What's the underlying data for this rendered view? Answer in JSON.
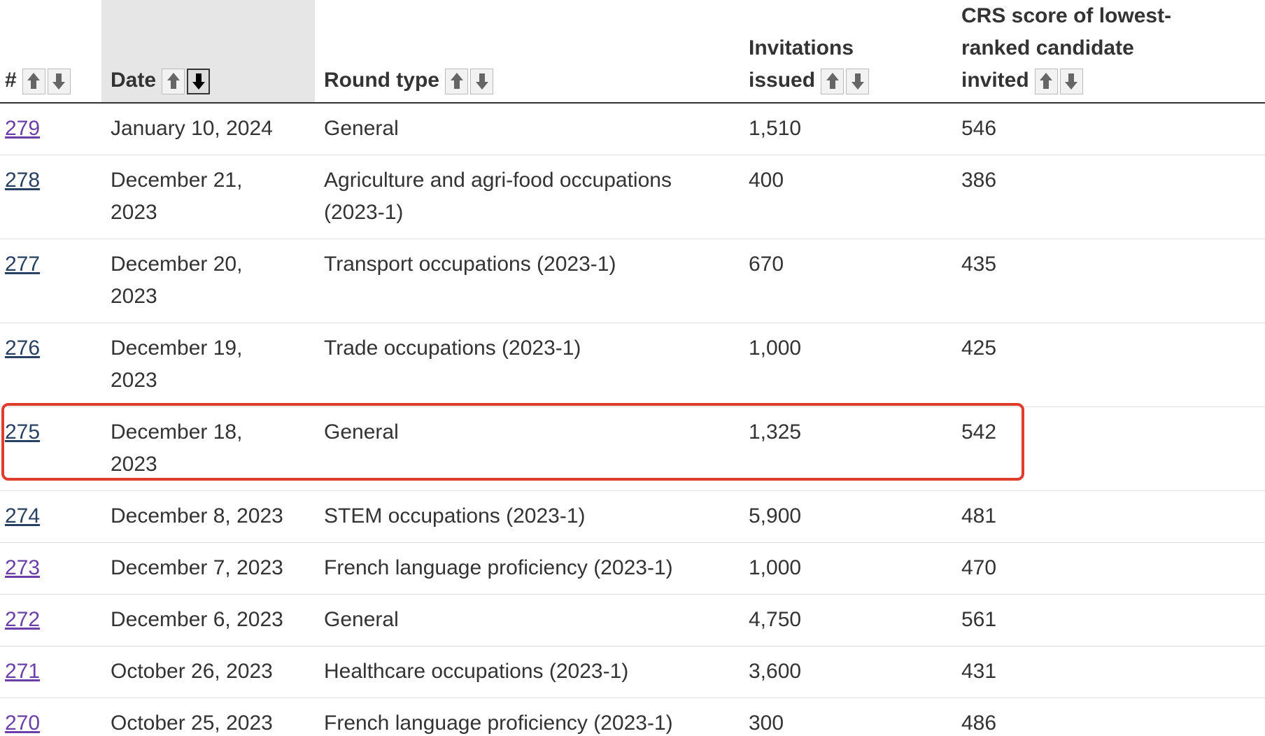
{
  "table": {
    "headers": [
      "#",
      "Date",
      "Round type",
      "Invitations issued",
      "CRS score of lowest-ranked candidate invited"
    ],
    "rows": [
      [
        "279",
        "January 10, 2024",
        "General",
        "1,510",
        "546"
      ],
      [
        "278",
        "December 21, 2023",
        "Agriculture and agri-food occupations (2023-1)",
        "400",
        "386"
      ],
      [
        "277",
        "December 20, 2023",
        "Transport occupations (2023-1)",
        "670",
        "435"
      ],
      [
        "276",
        "December 19, 2023",
        "Trade occupations (2023-1)",
        "1,000",
        "425"
      ],
      [
        "275",
        "December 18, 2023",
        "General",
        "1,325",
        "542"
      ],
      [
        "274",
        "December 8, 2023",
        "STEM occupations (2023-1)",
        "5,900",
        "481"
      ],
      [
        "273",
        "December 7, 2023",
        "French language proficiency (2023-1)",
        "1,000",
        "470"
      ],
      [
        "272",
        "December 6, 2023",
        "General",
        "4,750",
        "561"
      ],
      [
        "271",
        "October 26, 2023",
        "Healthcare occupations (2023-1)",
        "3,600",
        "431"
      ],
      [
        "270",
        "October 25, 2023",
        "French language proficiency (2023-1)",
        "300",
        "486"
      ]
    ]
  }
}
